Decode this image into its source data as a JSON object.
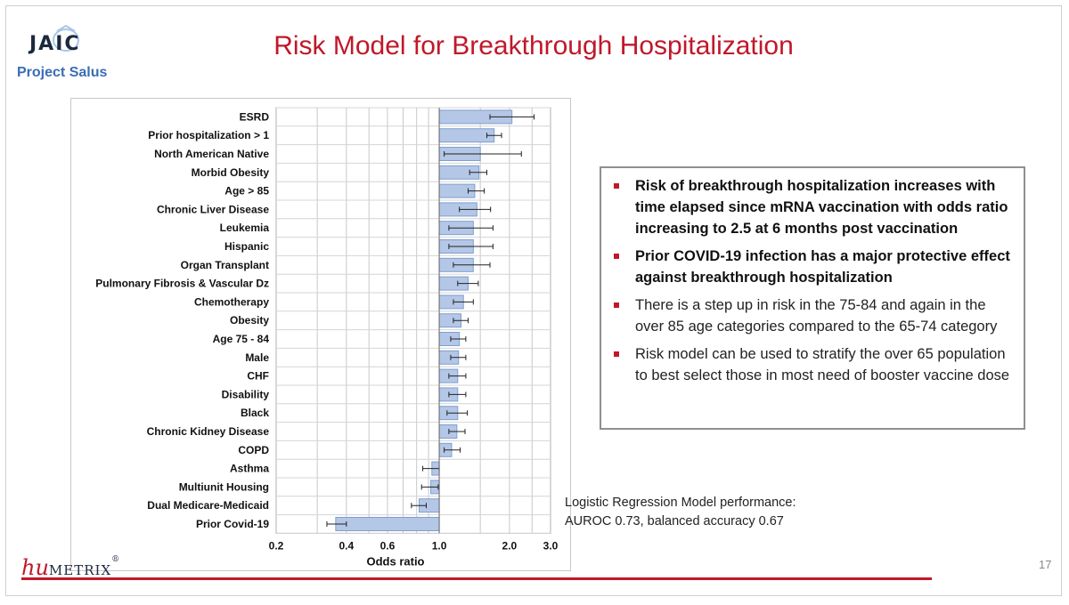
{
  "header": {
    "logo_text": "JAIC",
    "project": "Project Salus",
    "title": "Risk Model for Breakthrough Hospitalization"
  },
  "colors": {
    "accent": "#c0182a",
    "bar_fill": "#b4c7e7",
    "bar_stroke": "#7f9ecf"
  },
  "chart_data": {
    "type": "bar",
    "orientation": "horizontal",
    "x_scale": "log",
    "xlabel": "Odds ratio",
    "xlim": [
      0.2,
      3.0
    ],
    "x_ticks": [
      0.2,
      0.4,
      0.6,
      1.0,
      2.0,
      3.0
    ],
    "x_tick_labels": [
      "0.2",
      "0.4",
      "0.6",
      "1.0",
      "2.0",
      "3.0"
    ],
    "baseline": 1.0,
    "grid": true,
    "categories": [
      "ESRD",
      "Prior hospitalization > 1",
      "North American Native",
      "Morbid Obesity",
      "Age > 85",
      "Chronic Liver Disease",
      "Leukemia",
      "Hispanic",
      "Organ Transplant",
      "Pulmonary Fibrosis & Vascular Dz",
      "Chemotherapy",
      "Obesity",
      "Age 75 - 84",
      "Male",
      "CHF",
      "Disability",
      "Black",
      "Chronic Kidney Disease",
      "COPD",
      "Asthma",
      "Multiunit Housing",
      "Dual Medicare-Medicaid",
      "Prior Covid-19"
    ],
    "values": [
      2.05,
      1.72,
      1.5,
      1.48,
      1.42,
      1.45,
      1.4,
      1.4,
      1.4,
      1.33,
      1.27,
      1.24,
      1.22,
      1.21,
      1.2,
      1.2,
      1.2,
      1.19,
      1.13,
      0.93,
      0.92,
      0.82,
      0.36
    ],
    "ci_low": [
      1.65,
      1.6,
      1.05,
      1.35,
      1.33,
      1.22,
      1.1,
      1.1,
      1.15,
      1.2,
      1.15,
      1.15,
      1.12,
      1.12,
      1.1,
      1.1,
      1.08,
      1.1,
      1.05,
      0.85,
      0.84,
      0.76,
      0.33
    ],
    "ci_high": [
      2.55,
      1.85,
      2.25,
      1.6,
      1.56,
      1.66,
      1.7,
      1.7,
      1.65,
      1.47,
      1.4,
      1.33,
      1.3,
      1.3,
      1.3,
      1.3,
      1.32,
      1.29,
      1.23,
      1.0,
      0.99,
      0.88,
      0.4
    ]
  },
  "bullets": [
    {
      "text": "Risk of breakthrough hospitalization increases with time elapsed since mRNA vaccination with odds ratio increasing to 2.5 at 6 months post vaccination",
      "bold": true
    },
    {
      "text": "Prior COVID-19 infection has a major protective effect against breakthrough hospitalization",
      "bold": true
    },
    {
      "text": "There is a step up in risk in the 75-84 and again in the over 85 age categories compared to the 65-74 category",
      "bold": false
    },
    {
      "text": "Risk model can be used to stratify the over 65 population to best select those in most need of booster vaccine dose",
      "bold": false
    }
  ],
  "performance": {
    "line1": "Logistic Regression Model performance:",
    "line2": "AUROC 0.73, balanced accuracy 0.67"
  },
  "footer": {
    "company_hu": "hu",
    "company_metrix": "METRIX",
    "registered": "®",
    "page_number": "17"
  }
}
